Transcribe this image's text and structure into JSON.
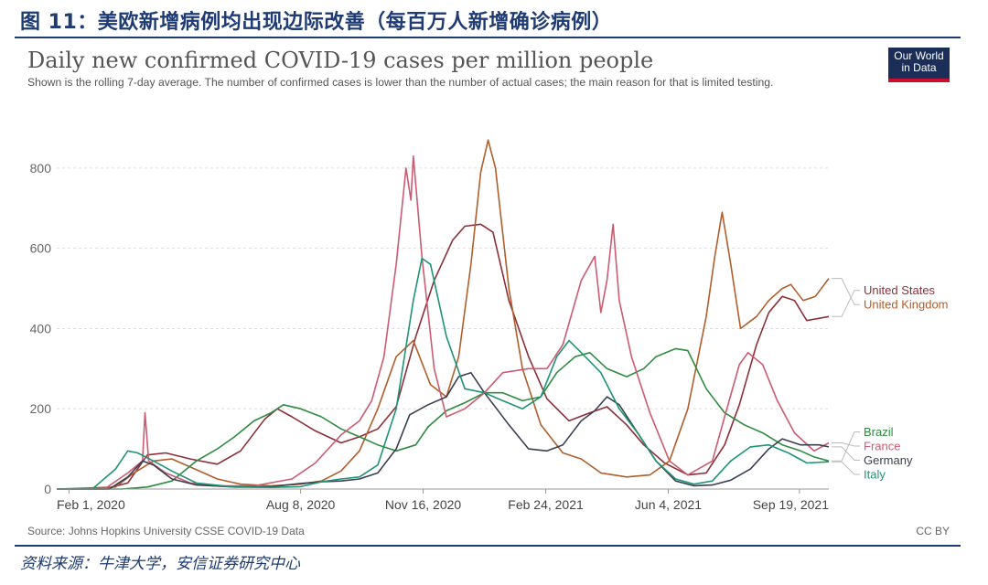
{
  "header": {
    "figure_title": "图 11：美欧新增病例均出现边际改善（每百万人新增确诊病例）"
  },
  "logo": {
    "line1": "Our World",
    "line2": "in Data"
  },
  "source": "Source: Johns Hopkins University CSSE COVID-19 Data",
  "license": "CC BY",
  "footnote": "资料来源：牛津大学，安信证券研究中心",
  "chart_data": {
    "type": "line",
    "title": "Daily new confirmed COVID-19 cases per million people",
    "subtitle": "Shown is the rolling 7-day average. The number of confirmed cases is lower than the number of actual cases; the main reason for that is limited testing.",
    "xlabel": "",
    "ylabel": "",
    "x_range": [
      "2020-01-22",
      "2021-10-13"
    ],
    "ylim": [
      0,
      900
    ],
    "y_ticks": [
      0,
      200,
      400,
      600,
      800
    ],
    "x_ticks": [
      {
        "date": "2020-02-01",
        "label": "Feb 1, 2020"
      },
      {
        "date": "2020-08-08",
        "label": "Aug 8, 2020"
      },
      {
        "date": "2020-11-16",
        "label": "Nov 16, 2020"
      },
      {
        "date": "2021-02-24",
        "label": "Feb 24, 2021"
      },
      {
        "date": "2021-06-04",
        "label": "Jun 4, 2021"
      },
      {
        "date": "2021-09-19",
        "label": "Sep 19, 2021"
      }
    ],
    "grid": "horizontal dashed",
    "legend": "right (labels at line ends)",
    "series": [
      {
        "name": "United States",
        "color": "#8c2f39",
        "points": [
          [
            "2020-01-22",
            0
          ],
          [
            "2020-03-01",
            0
          ],
          [
            "2020-03-20",
            15
          ],
          [
            "2020-04-05",
            85
          ],
          [
            "2020-04-20",
            90
          ],
          [
            "2020-05-10",
            75
          ],
          [
            "2020-06-01",
            62
          ],
          [
            "2020-06-20",
            95
          ],
          [
            "2020-07-10",
            175
          ],
          [
            "2020-07-20",
            200
          ],
          [
            "2020-08-01",
            180
          ],
          [
            "2020-08-20",
            145
          ],
          [
            "2020-09-10",
            115
          ],
          [
            "2020-09-25",
            130
          ],
          [
            "2020-10-10",
            150
          ],
          [
            "2020-10-25",
            205
          ],
          [
            "2020-11-10",
            380
          ],
          [
            "2020-11-25",
            520
          ],
          [
            "2020-12-10",
            620
          ],
          [
            "2020-12-20",
            655
          ],
          [
            "2021-01-02",
            660
          ],
          [
            "2021-01-12",
            640
          ],
          [
            "2021-01-25",
            470
          ],
          [
            "2021-02-10",
            330
          ],
          [
            "2021-02-25",
            225
          ],
          [
            "2021-03-15",
            170
          ],
          [
            "2021-04-01",
            190
          ],
          [
            "2021-04-15",
            205
          ],
          [
            "2021-05-01",
            160
          ],
          [
            "2021-05-15",
            110
          ],
          [
            "2021-06-01",
            65
          ],
          [
            "2021-06-20",
            35
          ],
          [
            "2021-07-05",
            40
          ],
          [
            "2021-07-20",
            110
          ],
          [
            "2021-08-01",
            210
          ],
          [
            "2021-08-15",
            360
          ],
          [
            "2021-08-25",
            440
          ],
          [
            "2021-09-05",
            480
          ],
          [
            "2021-09-15",
            470
          ],
          [
            "2021-09-25",
            420
          ],
          [
            "2021-10-13",
            430
          ]
        ]
      },
      {
        "name": "United Kingdom",
        "color": "#b05e2c",
        "points": [
          [
            "2020-01-22",
            0
          ],
          [
            "2020-03-10",
            5
          ],
          [
            "2020-03-25",
            40
          ],
          [
            "2020-04-10",
            70
          ],
          [
            "2020-04-25",
            75
          ],
          [
            "2020-05-10",
            55
          ],
          [
            "2020-06-01",
            25
          ],
          [
            "2020-06-20",
            12
          ],
          [
            "2020-07-15",
            8
          ],
          [
            "2020-08-08",
            12
          ],
          [
            "2020-08-25",
            20
          ],
          [
            "2020-09-10",
            45
          ],
          [
            "2020-09-25",
            95
          ],
          [
            "2020-10-10",
            200
          ],
          [
            "2020-10-25",
            330
          ],
          [
            "2020-11-08",
            370
          ],
          [
            "2020-11-22",
            260
          ],
          [
            "2020-12-05",
            230
          ],
          [
            "2020-12-15",
            330
          ],
          [
            "2020-12-25",
            560
          ],
          [
            "2021-01-02",
            790
          ],
          [
            "2021-01-08",
            870
          ],
          [
            "2021-01-14",
            800
          ],
          [
            "2021-01-25",
            500
          ],
          [
            "2021-02-05",
            300
          ],
          [
            "2021-02-20",
            160
          ],
          [
            "2021-03-10",
            90
          ],
          [
            "2021-03-25",
            75
          ],
          [
            "2021-04-10",
            40
          ],
          [
            "2021-05-01",
            30
          ],
          [
            "2021-05-20",
            35
          ],
          [
            "2021-06-05",
            70
          ],
          [
            "2021-06-20",
            200
          ],
          [
            "2021-07-05",
            430
          ],
          [
            "2021-07-12",
            580
          ],
          [
            "2021-07-18",
            690
          ],
          [
            "2021-07-25",
            560
          ],
          [
            "2021-08-02",
            400
          ],
          [
            "2021-08-15",
            430
          ],
          [
            "2021-08-25",
            470
          ],
          [
            "2021-09-05",
            500
          ],
          [
            "2021-09-12",
            510
          ],
          [
            "2021-09-22",
            470
          ],
          [
            "2021-10-02",
            480
          ],
          [
            "2021-10-13",
            525
          ]
        ]
      },
      {
        "name": "Brazil",
        "color": "#2e8b3f",
        "points": [
          [
            "2020-01-22",
            0
          ],
          [
            "2020-03-15",
            0
          ],
          [
            "2020-04-05",
            5
          ],
          [
            "2020-04-25",
            20
          ],
          [
            "2020-05-15",
            70
          ],
          [
            "2020-06-01",
            100
          ],
          [
            "2020-06-15",
            130
          ],
          [
            "2020-07-01",
            170
          ],
          [
            "2020-07-15",
            190
          ],
          [
            "2020-07-25",
            210
          ],
          [
            "2020-08-08",
            200
          ],
          [
            "2020-08-25",
            180
          ],
          [
            "2020-09-10",
            150
          ],
          [
            "2020-09-25",
            130
          ],
          [
            "2020-10-10",
            110
          ],
          [
            "2020-10-25",
            95
          ],
          [
            "2020-11-10",
            110
          ],
          [
            "2020-11-20",
            155
          ],
          [
            "2020-12-05",
            195
          ],
          [
            "2020-12-20",
            215
          ],
          [
            "2021-01-05",
            240
          ],
          [
            "2021-01-20",
            240
          ],
          [
            "2021-02-05",
            220
          ],
          [
            "2021-02-20",
            230
          ],
          [
            "2021-03-05",
            290
          ],
          [
            "2021-03-20",
            330
          ],
          [
            "2021-04-01",
            340
          ],
          [
            "2021-04-15",
            300
          ],
          [
            "2021-05-01",
            280
          ],
          [
            "2021-05-15",
            300
          ],
          [
            "2021-05-25",
            330
          ],
          [
            "2021-06-10",
            350
          ],
          [
            "2021-06-20",
            345
          ],
          [
            "2021-07-05",
            250
          ],
          [
            "2021-07-20",
            190
          ],
          [
            "2021-08-05",
            160
          ],
          [
            "2021-08-20",
            140
          ],
          [
            "2021-09-05",
            110
          ],
          [
            "2021-09-20",
            95
          ],
          [
            "2021-10-01",
            80
          ],
          [
            "2021-10-13",
            70
          ]
        ]
      },
      {
        "name": "France",
        "color": "#cc5b71",
        "points": [
          [
            "2020-01-22",
            0
          ],
          [
            "2020-03-01",
            0
          ],
          [
            "2020-03-20",
            40
          ],
          [
            "2020-04-01",
            70
          ],
          [
            "2020-04-03",
            190
          ],
          [
            "2020-04-06",
            70
          ],
          [
            "2020-04-20",
            40
          ],
          [
            "2020-05-10",
            15
          ],
          [
            "2020-06-01",
            8
          ],
          [
            "2020-07-01",
            8
          ],
          [
            "2020-08-01",
            25
          ],
          [
            "2020-08-20",
            65
          ],
          [
            "2020-09-10",
            135
          ],
          [
            "2020-09-25",
            170
          ],
          [
            "2020-10-05",
            220
          ],
          [
            "2020-10-15",
            330
          ],
          [
            "2020-10-25",
            560
          ],
          [
            "2020-11-02",
            800
          ],
          [
            "2020-11-06",
            720
          ],
          [
            "2020-11-08",
            830
          ],
          [
            "2020-11-15",
            580
          ],
          [
            "2020-11-25",
            300
          ],
          [
            "2020-12-05",
            180
          ],
          [
            "2020-12-20",
            200
          ],
          [
            "2021-01-05",
            240
          ],
          [
            "2021-01-20",
            290
          ],
          [
            "2021-02-10",
            300
          ],
          [
            "2021-02-25",
            300
          ],
          [
            "2021-03-10",
            360
          ],
          [
            "2021-03-25",
            520
          ],
          [
            "2021-04-05",
            580
          ],
          [
            "2021-04-10",
            440
          ],
          [
            "2021-04-15",
            520
          ],
          [
            "2021-04-20",
            660
          ],
          [
            "2021-04-25",
            470
          ],
          [
            "2021-05-05",
            330
          ],
          [
            "2021-05-20",
            190
          ],
          [
            "2021-06-05",
            70
          ],
          [
            "2021-06-20",
            35
          ],
          [
            "2021-07-10",
            70
          ],
          [
            "2021-07-20",
            180
          ],
          [
            "2021-08-01",
            310
          ],
          [
            "2021-08-08",
            340
          ],
          [
            "2021-08-20",
            310
          ],
          [
            "2021-09-01",
            220
          ],
          [
            "2021-09-15",
            140
          ],
          [
            "2021-10-01",
            95
          ],
          [
            "2021-10-13",
            115
          ]
        ]
      },
      {
        "name": "Germany",
        "color": "#3a3f51",
        "points": [
          [
            "2020-01-22",
            0
          ],
          [
            "2020-03-05",
            0
          ],
          [
            "2020-03-20",
            30
          ],
          [
            "2020-04-01",
            70
          ],
          [
            "2020-04-10",
            60
          ],
          [
            "2020-04-25",
            25
          ],
          [
            "2020-05-15",
            10
          ],
          [
            "2020-06-15",
            5
          ],
          [
            "2020-07-15",
            6
          ],
          [
            "2020-08-08",
            14
          ],
          [
            "2020-08-25",
            18
          ],
          [
            "2020-09-10",
            20
          ],
          [
            "2020-09-25",
            25
          ],
          [
            "2020-10-10",
            40
          ],
          [
            "2020-10-25",
            100
          ],
          [
            "2020-11-05",
            185
          ],
          [
            "2020-11-20",
            210
          ],
          [
            "2020-12-05",
            230
          ],
          [
            "2020-12-15",
            280
          ],
          [
            "2020-12-25",
            290
          ],
          [
            "2021-01-05",
            240
          ],
          [
            "2021-01-15",
            200
          ],
          [
            "2021-01-25",
            160
          ],
          [
            "2021-02-10",
            100
          ],
          [
            "2021-02-25",
            95
          ],
          [
            "2021-03-10",
            110
          ],
          [
            "2021-03-25",
            170
          ],
          [
            "2021-04-05",
            195
          ],
          [
            "2021-04-15",
            230
          ],
          [
            "2021-04-25",
            210
          ],
          [
            "2021-05-10",
            140
          ],
          [
            "2021-05-25",
            70
          ],
          [
            "2021-06-10",
            20
          ],
          [
            "2021-06-25",
            8
          ],
          [
            "2021-07-10",
            10
          ],
          [
            "2021-07-25",
            22
          ],
          [
            "2021-08-10",
            50
          ],
          [
            "2021-08-25",
            100
          ],
          [
            "2021-09-05",
            125
          ],
          [
            "2021-09-20",
            110
          ],
          [
            "2021-10-05",
            110
          ],
          [
            "2021-10-13",
            105
          ]
        ]
      },
      {
        "name": "Italy",
        "color": "#1f9474",
        "points": [
          [
            "2020-01-22",
            0
          ],
          [
            "2020-02-20",
            0
          ],
          [
            "2020-03-10",
            50
          ],
          [
            "2020-03-20",
            95
          ],
          [
            "2020-03-28",
            90
          ],
          [
            "2020-04-10",
            70
          ],
          [
            "2020-04-25",
            45
          ],
          [
            "2020-05-15",
            15
          ],
          [
            "2020-06-15",
            5
          ],
          [
            "2020-07-15",
            4
          ],
          [
            "2020-08-08",
            6
          ],
          [
            "2020-08-25",
            18
          ],
          [
            "2020-09-10",
            25
          ],
          [
            "2020-09-25",
            30
          ],
          [
            "2020-10-10",
            60
          ],
          [
            "2020-10-25",
            200
          ],
          [
            "2020-11-08",
            470
          ],
          [
            "2020-11-15",
            575
          ],
          [
            "2020-11-22",
            560
          ],
          [
            "2020-12-05",
            380
          ],
          [
            "2020-12-20",
            250
          ],
          [
            "2021-01-05",
            240
          ],
          [
            "2021-01-20",
            220
          ],
          [
            "2021-02-05",
            200
          ],
          [
            "2021-02-20",
            230
          ],
          [
            "2021-03-05",
            330
          ],
          [
            "2021-03-15",
            370
          ],
          [
            "2021-03-25",
            340
          ],
          [
            "2021-04-10",
            290
          ],
          [
            "2021-04-25",
            200
          ],
          [
            "2021-05-10",
            140
          ],
          [
            "2021-05-25",
            70
          ],
          [
            "2021-06-10",
            25
          ],
          [
            "2021-06-25",
            12
          ],
          [
            "2021-07-10",
            20
          ],
          [
            "2021-07-25",
            70
          ],
          [
            "2021-08-10",
            105
          ],
          [
            "2021-08-25",
            110
          ],
          [
            "2021-09-10",
            90
          ],
          [
            "2021-09-25",
            65
          ],
          [
            "2021-10-13",
            68
          ]
        ]
      }
    ],
    "end_labels": [
      "United States",
      "United Kingdom",
      "Brazil",
      "France",
      "Germany",
      "Italy"
    ]
  }
}
